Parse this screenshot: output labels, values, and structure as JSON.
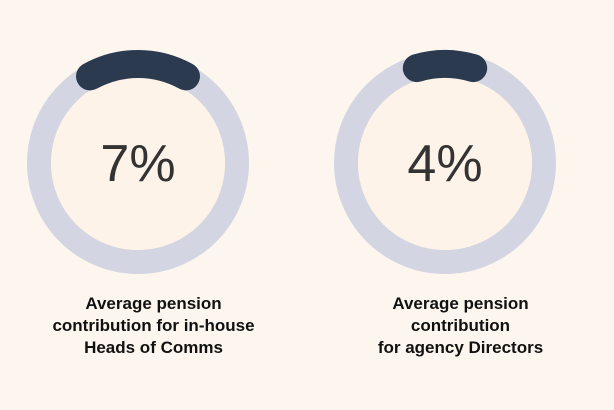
{
  "colors": {
    "background": "#fdf6ef",
    "ring_track": "#d3d5e2",
    "ring_inner": "#fdf3e8",
    "progress": "#2c3a4f",
    "value_text": "#333333",
    "caption_text": "#111111"
  },
  "chart_data": [
    {
      "type": "pie",
      "style": "donut-gauge",
      "value": 7,
      "unit": "%",
      "value_label": "7%",
      "caption_lines": [
        "Average pension",
        "contribution for in-house",
        "Heads of Comms"
      ]
    },
    {
      "type": "pie",
      "style": "donut-gauge",
      "value": 4,
      "unit": "%",
      "value_label": "4%",
      "caption_lines": [
        "Average pension",
        "contribution",
        "for agency Directors"
      ]
    }
  ]
}
